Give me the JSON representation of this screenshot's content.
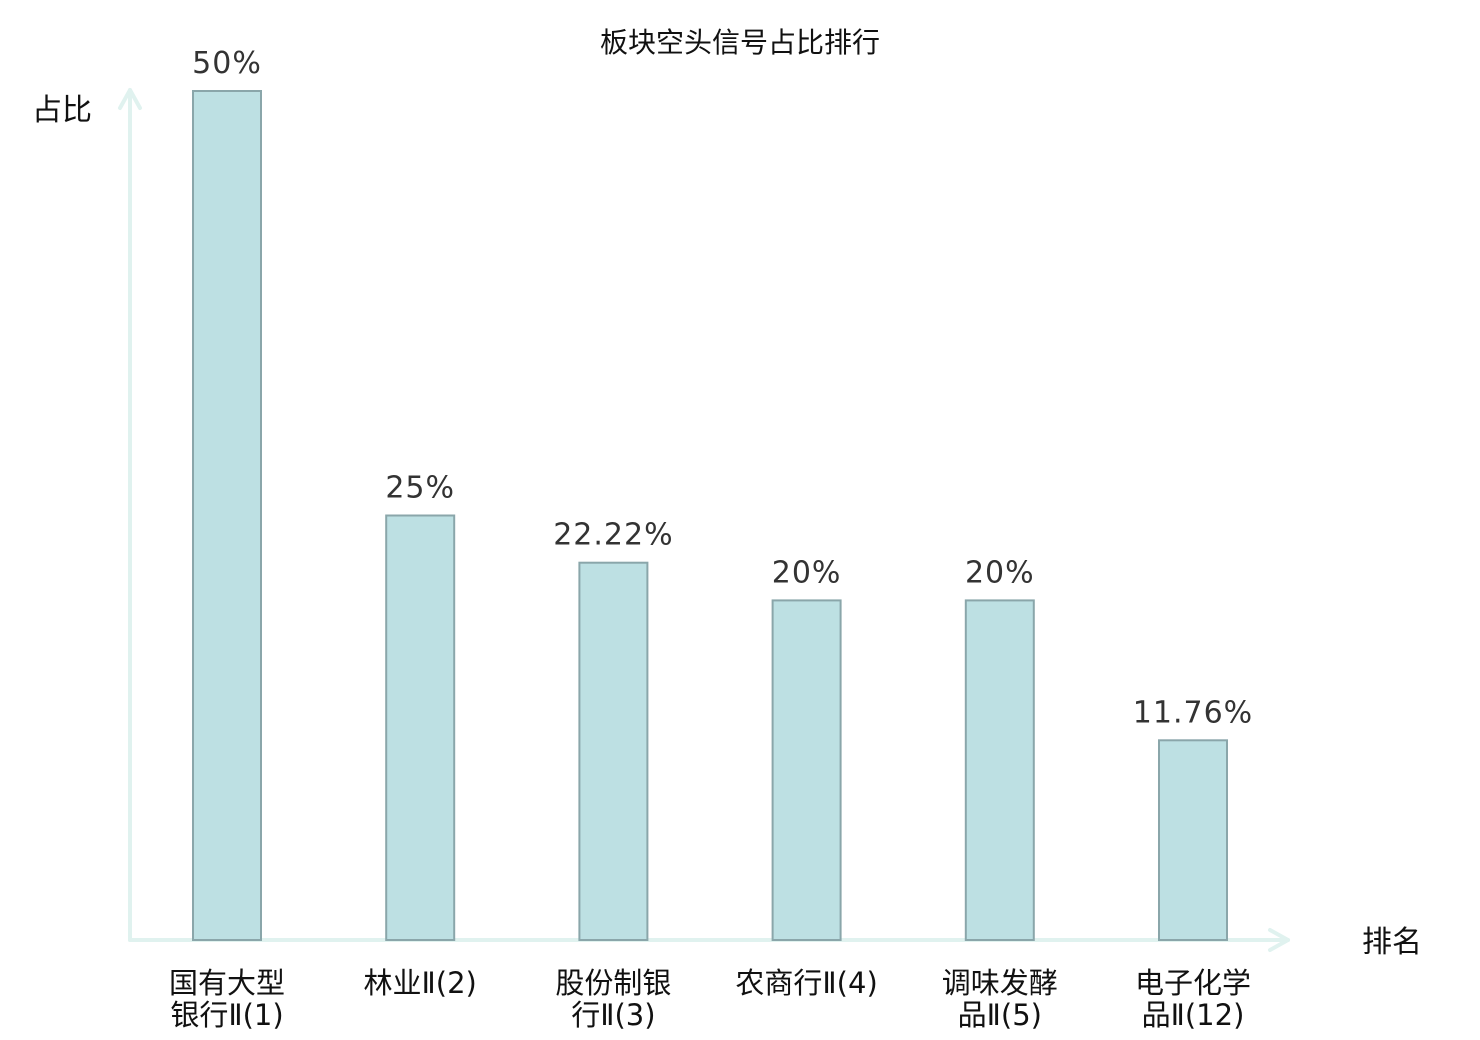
{
  "chart_data": {
    "type": "bar",
    "title": "板块空头信号占比排行",
    "ylabel": "占比",
    "xlabel": "排名",
    "ylim": [
      0,
      50
    ],
    "grid": false,
    "categories": [
      [
        "国有大型",
        "银行Ⅱ(1)"
      ],
      [
        "林业Ⅱ(2)"
      ],
      [
        "股份制银",
        "行Ⅱ(3)"
      ],
      [
        "农商行Ⅱ(4)"
      ],
      [
        "调味发酵",
        "品Ⅱ(5)"
      ],
      [
        "电子化学",
        "品Ⅱ(12)"
      ]
    ],
    "values": [
      50,
      25,
      22.22,
      20,
      20,
      11.76
    ],
    "value_labels": [
      "50%",
      "25%",
      "22.22%",
      "20%",
      "20%",
      "11.76%"
    ],
    "highlight_index": 5
  },
  "colors": {
    "bar_fill": "#bde0e3",
    "bar_stroke": "#8aa6aa",
    "axis": "#e0f2ef",
    "highlight_text": "#e00000",
    "text": "#111111",
    "value_text": "#333333"
  }
}
